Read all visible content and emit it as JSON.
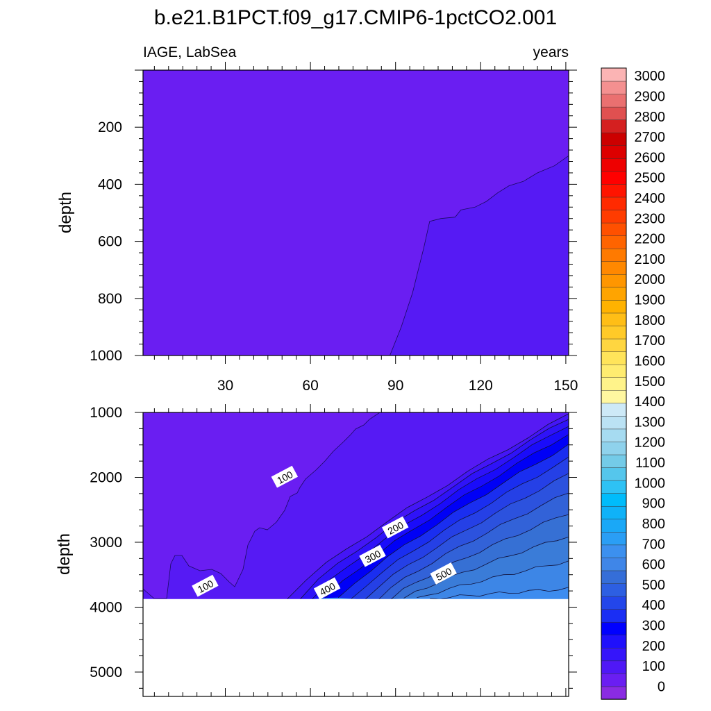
{
  "chart_data": {
    "type": "contour",
    "title": "b.e21.B1PCT.f09_g17.CMIP6-1pctCO2.001",
    "left_string": "IAGE, LabSea",
    "right_string": "years",
    "xlabel": "",
    "xlim": [
      1,
      151
    ],
    "xticks": [
      "30",
      "60",
      "90",
      "120",
      "150"
    ],
    "colorbar": {
      "labels": [
        "0",
        "100",
        "200",
        "300",
        "400",
        "500",
        "600",
        "700",
        "800",
        "900",
        "1000",
        "1100",
        "1200",
        "1300",
        "1400",
        "1500",
        "1600",
        "1700",
        "1800",
        "1900",
        "2000",
        "2100",
        "2200",
        "2300",
        "2400",
        "2500",
        "2600",
        "2700",
        "2800",
        "2900",
        "3000"
      ],
      "colors": [
        "#8a2be2",
        "#6a1ef2",
        "#4f18f6",
        "#3515fa",
        "#1f10fc",
        "#0000ff",
        "#1a2ef4",
        "#2346ea",
        "#2d5fe2",
        "#356ed8",
        "#3f86e8",
        "#3c90ef",
        "#2a9ef5",
        "#1aa8f7",
        "#0fb2f8",
        "#00bcfb",
        "#2ec2f4",
        "#55c6ec",
        "#74cbe8",
        "#8fd2ec",
        "#a6dbf1",
        "#bbe2f4",
        "#cde9f7",
        "#fff7a0",
        "#fff38a",
        "#ffec70",
        "#ffe45a",
        "#ffd640",
        "#ffca28",
        "#ffbe16",
        "#ffb200",
        "#ffa400",
        "#ff9600",
        "#ff8800",
        "#ff7a00",
        "#ff6400",
        "#ff5000",
        "#ff3c00",
        "#ff2a00",
        "#ff1400",
        "#ff0000",
        "#ee0000",
        "#dd0000",
        "#cc0000",
        "#d42020",
        "#e05050",
        "#ea7070",
        "#f49090",
        "#fbb4b4"
      ]
    },
    "upper_panel": {
      "ylabel": "depth",
      "ylim": [
        0,
        1000
      ],
      "yticks": [
        "200",
        "400",
        "600",
        "800",
        "1000"
      ],
      "regions": [
        {
          "level": "0-50",
          "color": "#6a1ef2"
        },
        {
          "level": "50-100",
          "color": "#561af4"
        }
      ],
      "contour_50": [
        {
          "year": 88,
          "depth": 1000
        },
        {
          "year": 92,
          "depth": 900
        },
        {
          "year": 96,
          "depth": 780
        },
        {
          "year": 100,
          "depth": 620
        },
        {
          "year": 102,
          "depth": 530
        },
        {
          "year": 106,
          "depth": 520
        },
        {
          "year": 111,
          "depth": 515
        },
        {
          "year": 113,
          "depth": 490
        },
        {
          "year": 118,
          "depth": 480
        },
        {
          "year": 122,
          "depth": 460
        },
        {
          "year": 126,
          "depth": 430
        },
        {
          "year": 130,
          "depth": 405
        },
        {
          "year": 135,
          "depth": 390
        },
        {
          "year": 140,
          "depth": 360
        },
        {
          "year": 146,
          "depth": 335
        },
        {
          "year": 151,
          "depth": 300
        }
      ]
    },
    "lower_panel": {
      "ylabel": "depth",
      "ylim": [
        1000,
        5375
      ],
      "yticks": [
        "1000",
        "2000",
        "3000",
        "4000",
        "5000"
      ],
      "data_bottom_depth": 3875,
      "contour_labels": [
        {
          "text": "100",
          "year": 51,
          "depth": 2000
        },
        {
          "text": "100",
          "year": 23,
          "depth": 3680
        },
        {
          "text": "200",
          "year": 90,
          "depth": 2780
        },
        {
          "text": "300",
          "year": 82,
          "depth": 3220
        },
        {
          "text": "400",
          "year": 66,
          "depth": 3720
        },
        {
          "text": "500",
          "year": 107,
          "depth": 3490
        }
      ]
    }
  }
}
